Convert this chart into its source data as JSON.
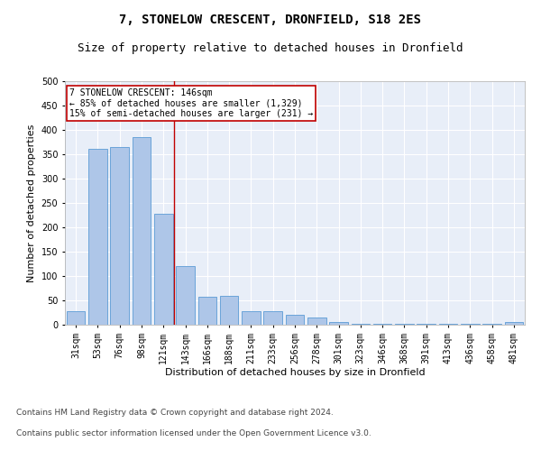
{
  "title": "7, STONELOW CRESCENT, DRONFIELD, S18 2ES",
  "subtitle": "Size of property relative to detached houses in Dronfield",
  "xlabel": "Distribution of detached houses by size in Dronfield",
  "ylabel": "Number of detached properties",
  "categories": [
    "31sqm",
    "53sqm",
    "76sqm",
    "98sqm",
    "121sqm",
    "143sqm",
    "166sqm",
    "188sqm",
    "211sqm",
    "233sqm",
    "256sqm",
    "278sqm",
    "301sqm",
    "323sqm",
    "346sqm",
    "368sqm",
    "391sqm",
    "413sqm",
    "436sqm",
    "458sqm",
    "481sqm"
  ],
  "values": [
    28,
    362,
    365,
    385,
    228,
    120,
    58,
    59,
    28,
    27,
    20,
    15,
    5,
    2,
    1,
    1,
    1,
    1,
    1,
    1,
    5
  ],
  "bar_color": "#aec6e8",
  "bar_edge_color": "#5b9bd5",
  "vline_index": 5,
  "vline_color": "#c00000",
  "annotation_text": "7 STONELOW CRESCENT: 146sqm\n← 85% of detached houses are smaller (1,329)\n15% of semi-detached houses are larger (231) →",
  "annotation_box_facecolor": "#ffffff",
  "annotation_box_edgecolor": "#c00000",
  "ylim": [
    0,
    500
  ],
  "yticks": [
    0,
    50,
    100,
    150,
    200,
    250,
    300,
    350,
    400,
    450,
    500
  ],
  "title_fontsize": 10,
  "subtitle_fontsize": 9,
  "axis_label_fontsize": 8,
  "tick_fontsize": 7,
  "annotation_fontsize": 7,
  "footer_fontsize": 6.5,
  "footer_line1": "Contains HM Land Registry data © Crown copyright and database right 2024.",
  "footer_line2": "Contains public sector information licensed under the Open Government Licence v3.0.",
  "bg_color": "#e8eef8",
  "fig_bg_color": "#ffffff",
  "grid_color": "#ffffff",
  "spine_color": "#aaaaaa"
}
